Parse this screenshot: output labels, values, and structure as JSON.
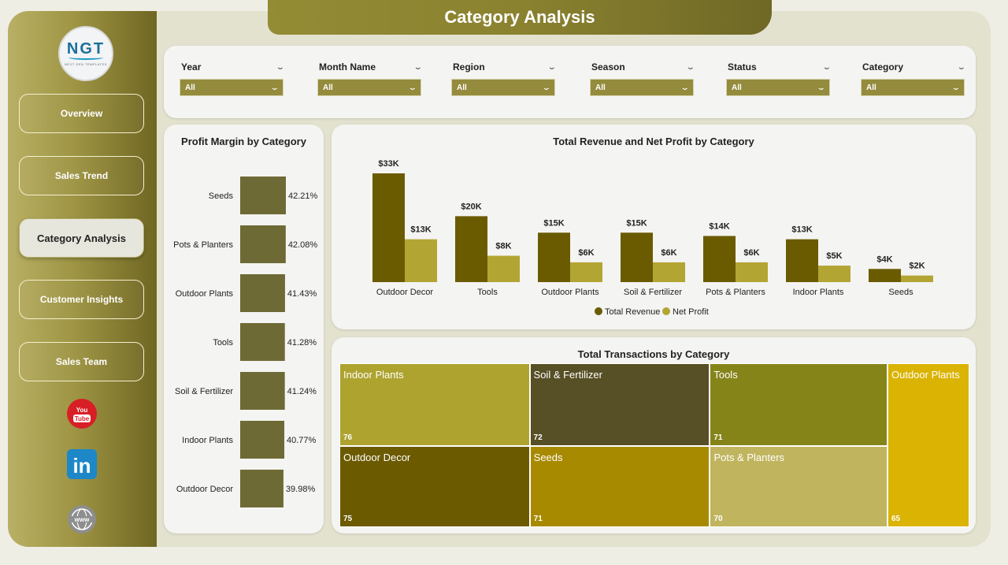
{
  "title": "Category Analysis",
  "logo": {
    "mark": "NGT",
    "sub": "NEXT GEN TEMPLATES"
  },
  "nav": [
    {
      "label": "Overview",
      "active": false
    },
    {
      "label": "Sales Trend",
      "active": false
    },
    {
      "label": "Category Analysis",
      "active": true
    },
    {
      "label": "Customer Insights",
      "active": false
    },
    {
      "label": "Sales Team",
      "active": false
    }
  ],
  "social": {
    "youtube": "You Tube",
    "linkedin": "in",
    "web": "www"
  },
  "filters": [
    {
      "label": "Year",
      "value": "All"
    },
    {
      "label": "Month Name",
      "value": "All"
    },
    {
      "label": "Region",
      "value": "All"
    },
    {
      "label": "Season",
      "value": "All"
    },
    {
      "label": "Status",
      "value": "All"
    },
    {
      "label": "Category",
      "value": "All"
    }
  ],
  "icons": {
    "dropdown": "chevron-down-icon"
  },
  "colors": {
    "revenue": "#6b5b00",
    "profit": "#b3a533",
    "bar": "#6e6a35",
    "accent": "#948b3d"
  },
  "profit_margin": {
    "title": "Profit Margin by Category",
    "chart_data": {
      "type": "bar",
      "orientation": "horizontal",
      "categories": [
        "Seeds",
        "Pots & Planters",
        "Outdoor Plants",
        "Tools",
        "Soil & Fertilizer",
        "Indoor Plants",
        "Outdoor Decor"
      ],
      "values": [
        42.21,
        42.08,
        41.43,
        41.28,
        41.24,
        40.77,
        39.98
      ],
      "labels": [
        "42.21%",
        "42.08%",
        "41.43%",
        "41.28%",
        "41.24%",
        "40.77%",
        "39.98%"
      ],
      "xlim": [
        0,
        42.21
      ]
    }
  },
  "revenue_profit": {
    "title": "Total Revenue and Net Profit by Category",
    "chart_data": {
      "type": "bar",
      "categories": [
        "Outdoor Decor",
        "Tools",
        "Outdoor Plants",
        "Soil & Fertilizer",
        "Pots & Planters",
        "Indoor Plants",
        "Seeds"
      ],
      "series": [
        {
          "name": "Total Revenue",
          "values": [
            33,
            20,
            15,
            15,
            14,
            13,
            4
          ],
          "labels": [
            "$33K",
            "$20K",
            "$15K",
            "$15K",
            "$14K",
            "$13K",
            "$4K"
          ]
        },
        {
          "name": "Net Profit",
          "values": [
            13,
            8,
            6,
            6,
            6,
            5,
            2
          ],
          "labels": [
            "$13K",
            "$8K",
            "$6K",
            "$6K",
            "$6K",
            "$5K",
            "$2K"
          ]
        }
      ],
      "ylim": [
        0,
        33
      ],
      "legend": "bottom-center"
    }
  },
  "transactions": {
    "title": "Total Transactions by Category",
    "chart_data": {
      "type": "treemap",
      "items": [
        {
          "name": "Indoor Plants",
          "value": 76,
          "color": "#aea32f"
        },
        {
          "name": "Soil & Fertilizer",
          "value": 72,
          "color": "#574f25"
        },
        {
          "name": "Tools",
          "value": 71,
          "color": "#858419"
        },
        {
          "name": "Outdoor Plants",
          "value": 65,
          "color": "#dbb303"
        },
        {
          "name": "Outdoor Decor",
          "value": 75,
          "color": "#6b5a00"
        },
        {
          "name": "Seeds",
          "value": 71,
          "color": "#a88a00"
        },
        {
          "name": "Pots & Planters",
          "value": 70,
          "color": "#c0b45e"
        }
      ]
    }
  }
}
